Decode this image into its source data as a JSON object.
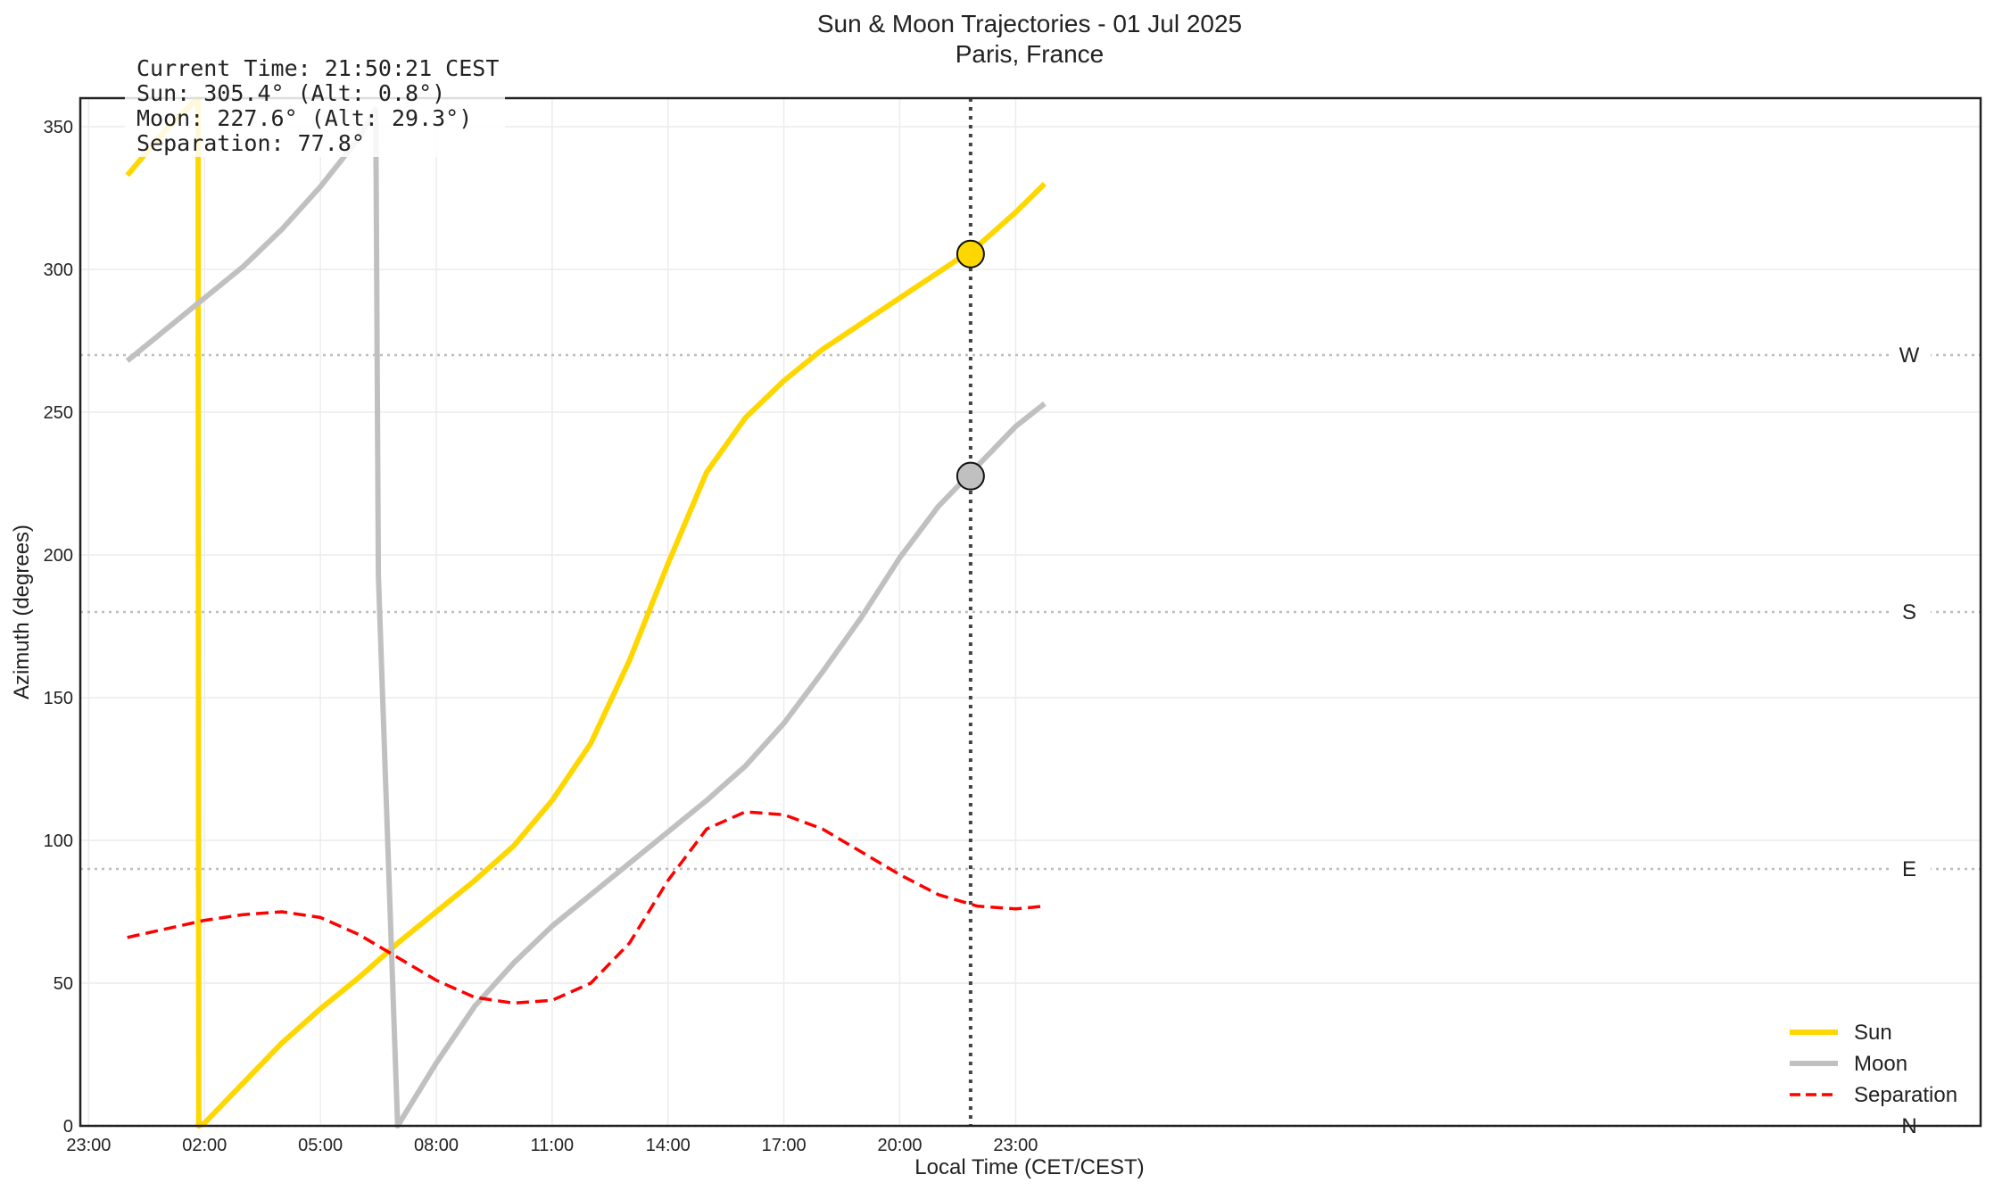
{
  "chart_data": {
    "type": "line",
    "title": "Sun & Moon Trajectories - 01 Jul 2025",
    "subtitle": "Paris, France",
    "xlabel": "Local Time (CET/CEST)",
    "ylabel": "Azimuth (degrees)",
    "xlim": [
      "22:47",
      "23:59 (+1)"
    ],
    "ylim": [
      0,
      360
    ],
    "x_ticks": [
      "23:00",
      "02:00",
      "05:00",
      "08:00",
      "11:00",
      "14:00",
      "17:00",
      "20:00",
      "23:00"
    ],
    "y_ticks": [
      0,
      50,
      100,
      150,
      200,
      250,
      300,
      350
    ],
    "grid": true,
    "legend_position": "lower-right",
    "compass_lines": [
      {
        "label": "N",
        "azimuth": 0
      },
      {
        "label": "E",
        "azimuth": 90
      },
      {
        "label": "S",
        "azimuth": 180
      },
      {
        "label": "W",
        "azimuth": 270
      }
    ],
    "current_time": "21:50",
    "series": [
      {
        "name": "Sun",
        "color": "#FFD700",
        "style": "solid",
        "x": [
          "00:00",
          "01:00",
          "01:50",
          "01:51",
          "02:00",
          "03:00",
          "04:00",
          "05:00",
          "06:00",
          "07:00",
          "08:00",
          "09:00",
          "10:00",
          "11:00",
          "12:00",
          "13:00",
          "14:00",
          "15:00",
          "16:00",
          "17:00",
          "18:00",
          "19:00",
          "20:00",
          "21:00",
          "22:00",
          "23:00",
          "23:45"
        ],
        "values": [
          333,
          349,
          360,
          0,
          1,
          15,
          29,
          41,
          52,
          64,
          75,
          86,
          98,
          114,
          134,
          163,
          197,
          229,
          248,
          261,
          272,
          281,
          290,
          299,
          308,
          320,
          330
        ],
        "marker": {
          "x": "21:50",
          "y": 305.4
        }
      },
      {
        "name": "Moon",
        "color": "#C0C0C0",
        "style": "solid",
        "x": [
          "00:00",
          "01:00",
          "02:00",
          "03:00",
          "04:00",
          "05:00",
          "06:00",
          "06:25",
          "06:26",
          "06:30",
          "07:00",
          "08:00",
          "09:00",
          "10:00",
          "11:00",
          "12:00",
          "13:00",
          "14:00",
          "15:00",
          "16:00",
          "17:00",
          "18:00",
          "19:00",
          "20:00",
          "21:00",
          "22:00",
          "23:00",
          "23:45"
        ],
        "values": [
          268,
          279,
          290,
          301,
          314,
          329,
          346,
          356,
          355,
          193,
          0,
          22,
          42,
          57,
          70,
          81,
          92,
          103,
          114,
          126,
          141,
          159,
          178,
          199,
          217,
          231,
          245,
          253
        ],
        "marker": {
          "x": "21:50",
          "y": 227.6
        }
      },
      {
        "name": "Separation",
        "color": "#FF0000",
        "style": "dashed",
        "x": [
          "00:00",
          "01:00",
          "02:00",
          "03:00",
          "04:00",
          "05:00",
          "06:00",
          "07:00",
          "08:00",
          "09:00",
          "10:00",
          "11:00",
          "12:00",
          "13:00",
          "14:00",
          "15:00",
          "16:00",
          "17:00",
          "18:00",
          "19:00",
          "20:00",
          "21:00",
          "22:00",
          "23:00",
          "23:45"
        ],
        "values": [
          66,
          69,
          72,
          74,
          75,
          73,
          67,
          59,
          51,
          45,
          43,
          44,
          50,
          64,
          86,
          104,
          110,
          109,
          104,
          96,
          88,
          81,
          77,
          76,
          77
        ]
      }
    ],
    "info_box": {
      "line1": "Current Time: 21:50:21 CEST",
      "line2": "Sun: 305.4° (Alt: 0.8°)",
      "line3": "Moon: 227.6° (Alt: 29.3°)",
      "line4": "Separation: 77.8°"
    },
    "legend": [
      "Sun",
      "Moon",
      "Separation"
    ]
  }
}
